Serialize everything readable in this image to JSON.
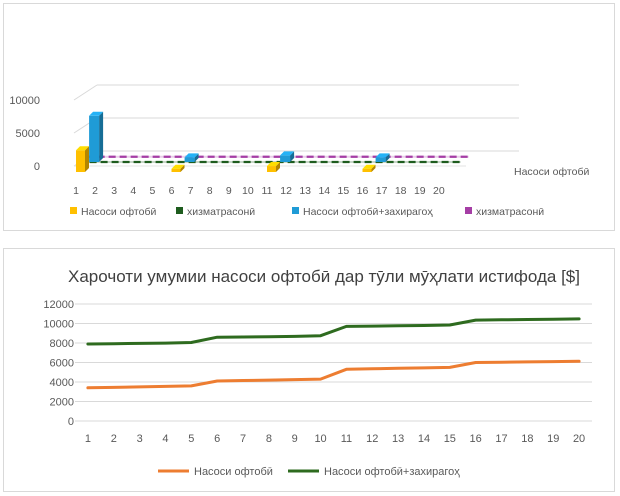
{
  "chart_data": [
    {
      "type": "bar",
      "style": "3d-clustered-column",
      "categories": [
        "1",
        "2",
        "3",
        "4",
        "5",
        "6",
        "7",
        "8",
        "9",
        "10",
        "11",
        "12",
        "13",
        "14",
        "15",
        "16",
        "17",
        "18",
        "19",
        "20"
      ],
      "ylim": [
        0,
        10000
      ],
      "yticks": [
        "0",
        "5000",
        "10000"
      ],
      "series_label": "Насоси офтобӣ",
      "series": [
        {
          "name": "Насоси офтобӣ",
          "color": "#ffc000",
          "values": [
            3300,
            0,
            0,
            0,
            0,
            500,
            0,
            0,
            0,
            0,
            900,
            0,
            0,
            0,
            0,
            500,
            0,
            0,
            0,
            0
          ]
        },
        {
          "name": "хизматрасонӣ",
          "color": "#1e5c1e",
          "values": [
            60,
            60,
            60,
            60,
            60,
            60,
            60,
            60,
            60,
            60,
            60,
            60,
            60,
            60,
            60,
            60,
            60,
            60,
            60,
            60
          ]
        },
        {
          "name": "Насоси офтобӣ+захирагоҳ",
          "color": "#1f9bd6",
          "values": [
            0,
            7000,
            0,
            0,
            0,
            0,
            700,
            0,
            0,
            0,
            0,
            1000,
            0,
            0,
            0,
            0,
            700,
            0,
            0,
            0
          ]
        },
        {
          "name": "хизматрасонӣ",
          "color": "#a53ea5",
          "values": [
            110,
            110,
            110,
            110,
            110,
            110,
            110,
            110,
            110,
            110,
            110,
            110,
            110,
            110,
            110,
            110,
            110,
            110,
            110,
            110
          ]
        }
      ],
      "legend_position": "bottom"
    },
    {
      "type": "line",
      "title": "Харочоти умумии насоси офтобӣ дар тӯли мӯҳлати истифода [$]",
      "x": [
        1,
        2,
        3,
        4,
        5,
        6,
        7,
        8,
        9,
        10,
        11,
        12,
        13,
        14,
        15,
        16,
        17,
        18,
        19,
        20
      ],
      "ylim": [
        0,
        12000
      ],
      "yticks": [
        "0",
        "2000",
        "4000",
        "6000",
        "8000",
        "10000",
        "12000"
      ],
      "series": [
        {
          "name": "Насоси офтобӣ",
          "color": "#ed7d31",
          "values": [
            3400,
            3450,
            3500,
            3550,
            3600,
            4100,
            4150,
            4200,
            4250,
            4300,
            5300,
            5350,
            5400,
            5450,
            5500,
            6000,
            6030,
            6060,
            6090,
            6120
          ]
        },
        {
          "name": "Насоси офтобӣ+захирагоҳ",
          "color": "#2e6b1f",
          "values": [
            7900,
            7930,
            7960,
            7990,
            8050,
            8600,
            8620,
            8650,
            8680,
            8750,
            9700,
            9730,
            9760,
            9790,
            9850,
            10350,
            10380,
            10410,
            10440,
            10470
          ]
        }
      ],
      "legend_position": "bottom"
    }
  ]
}
